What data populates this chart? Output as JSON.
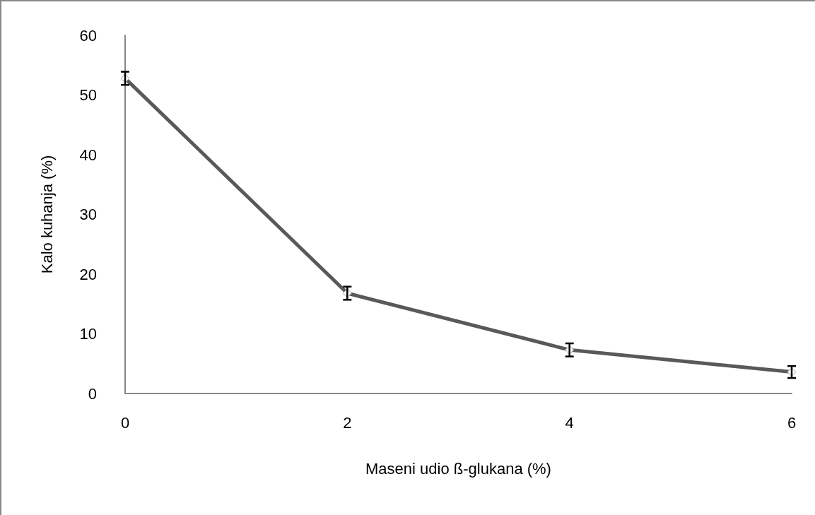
{
  "chart_data": {
    "type": "line",
    "xlabel": "Maseni udio ß-glukana (%)",
    "ylabel": "Kalo kuhanja (%)",
    "x": [
      0,
      2,
      4,
      6
    ],
    "series": [
      {
        "color": "#595959",
        "values": [
          52.8,
          16.8,
          7.3,
          3.6
        ],
        "errors": [
          1.1,
          1.1,
          1.1,
          1.0
        ]
      }
    ],
    "xlim": [
      0,
      6
    ],
    "xticks": [
      0,
      2,
      4,
      6
    ],
    "ylim": [
      0,
      60
    ],
    "yticks": [
      0,
      10,
      20,
      30,
      40,
      50,
      60
    ],
    "grid": false,
    "marker": "diamond",
    "line_style": "solid"
  }
}
